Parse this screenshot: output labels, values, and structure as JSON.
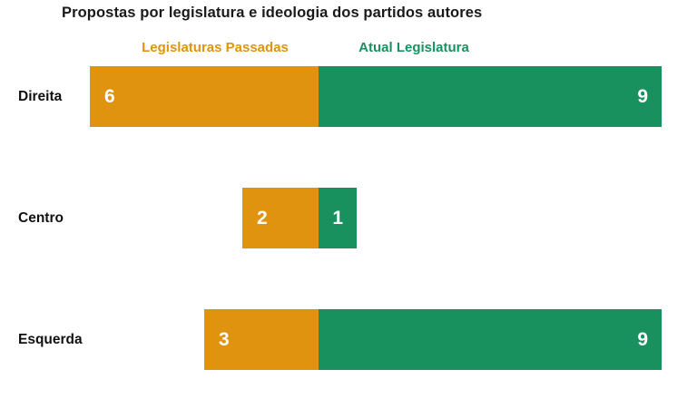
{
  "title": "Propostas por legislatura e ideologia dos partidos autores",
  "legend": {
    "past_label": "Legislaturas Passadas",
    "current_label": "Atual Legislatura"
  },
  "colors": {
    "past": "#E0930F",
    "current": "#19915F",
    "title_text": "#1A1A1A",
    "category_text": "#111111",
    "value_text": "#FFFFFF",
    "background": "#FFFFFF"
  },
  "chart_data": {
    "type": "bar",
    "variant": "diverging-stacked-horizontal",
    "title": "Propostas por legislatura e ideologia dos partidos autores",
    "categories": [
      "Direita",
      "Centro",
      "Esquerda"
    ],
    "series": [
      {
        "name": "Legislaturas Passadas",
        "side": "left",
        "color": "#E0930F",
        "values": [
          6,
          2,
          3
        ]
      },
      {
        "name": "Atual Legislatura",
        "side": "right",
        "color": "#19915F",
        "values": [
          9,
          1,
          9
        ]
      }
    ],
    "xlabel": "",
    "ylabel": "",
    "value_labels_shown": true,
    "axes_hidden": true,
    "grid": false,
    "legend_position": "top"
  }
}
